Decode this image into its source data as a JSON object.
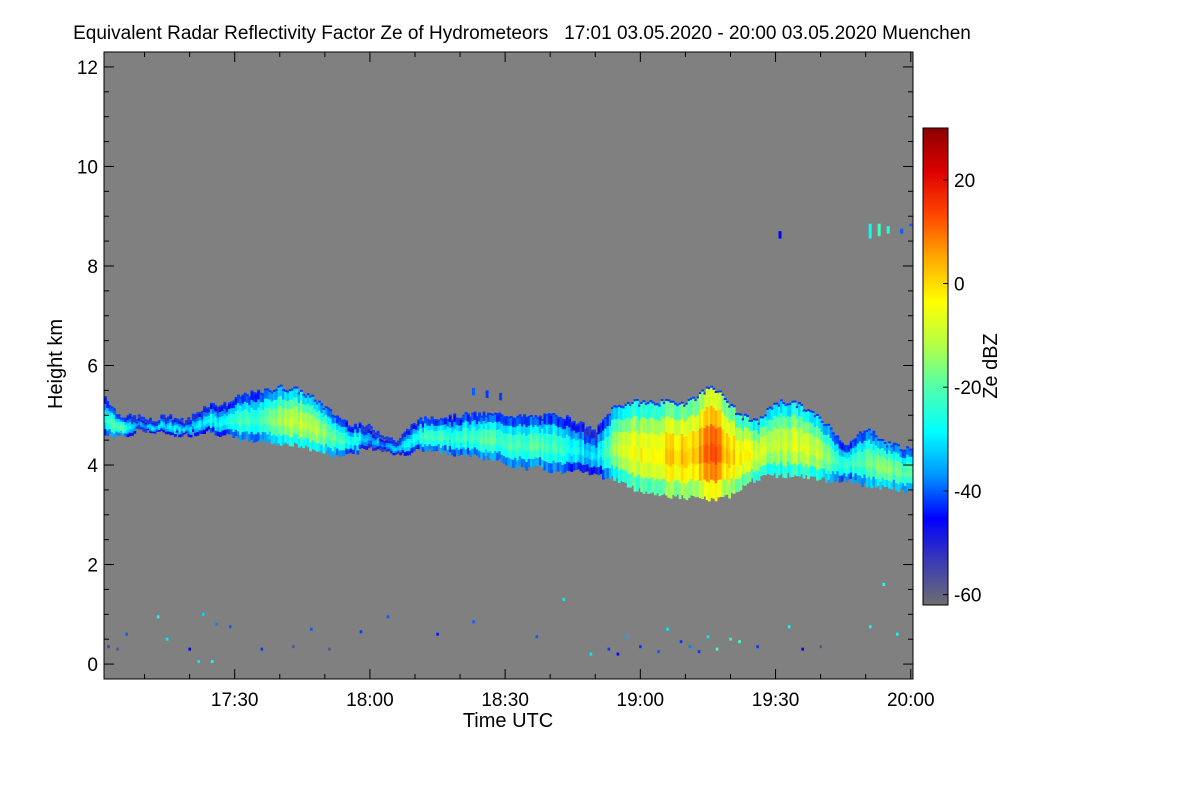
{
  "chart_data": {
    "type": "heatmap",
    "title": "Equivalent Radar Reflectivity Factor Ze of Hydrometeors   17:01 03.05.2020 - 20:00 03.05.2020 Muenchen",
    "xlabel": "Time UTC",
    "ylabel": "Height km",
    "x_unit": "minutes after 17:00 UTC",
    "xlim": [
      1,
      180.5
    ],
    "ylim": [
      -0.3,
      12.3
    ],
    "x_ticks": [
      {
        "value": 30,
        "label": "17:30"
      },
      {
        "value": 60,
        "label": "18:00"
      },
      {
        "value": 90,
        "label": "18:30"
      },
      {
        "value": 120,
        "label": "19:00"
      },
      {
        "value": 150,
        "label": "19:30"
      },
      {
        "value": 180,
        "label": "20:00"
      }
    ],
    "y_ticks": [
      {
        "value": 0,
        "label": "0"
      },
      {
        "value": 2,
        "label": "2"
      },
      {
        "value": 4,
        "label": "4"
      },
      {
        "value": 6,
        "label": "6"
      },
      {
        "value": 8,
        "label": "8"
      },
      {
        "value": 10,
        "label": "10"
      },
      {
        "value": 12,
        "label": "12"
      }
    ],
    "background_color": "#808080",
    "colorbar": {
      "label": "Ze dBZ",
      "range": [
        -62,
        30
      ],
      "ticks": [
        {
          "value": 20,
          "label": "20"
        },
        {
          "value": 0,
          "label": "0"
        },
        {
          "value": -20,
          "label": "-20"
        },
        {
          "value": -40,
          "label": "-40"
        },
        {
          "value": -60,
          "label": "-60"
        }
      ],
      "colors": [
        "#6e6e6e",
        "#3b3bb6",
        "#0000ff",
        "#0096ff",
        "#00ffff",
        "#50ffaf",
        "#b4ff46",
        "#ffff00",
        "#ffaa00",
        "#ff4600",
        "#dc0000",
        "#8c0000"
      ]
    },
    "cloud_layer": {
      "description": "main hydrometeor layer",
      "columns": [
        {
          "t": 1,
          "base": 4.6,
          "top": 5.4,
          "ze": -25
        },
        {
          "t": 4,
          "base": 4.6,
          "top": 5.0,
          "ze": -18
        },
        {
          "t": 7,
          "base": 4.6,
          "top": 4.95,
          "ze": -28
        },
        {
          "t": 9,
          "base": 4.75,
          "top": 4.95,
          "ze": -36
        },
        {
          "t": 12,
          "base": 4.65,
          "top": 4.85,
          "ze": -30
        },
        {
          "t": 15,
          "base": 4.65,
          "top": 5.0,
          "ze": -32
        },
        {
          "t": 19,
          "base": 4.6,
          "top": 4.85,
          "ze": -30
        },
        {
          "t": 24,
          "base": 4.7,
          "top": 5.2,
          "ze": -28
        },
        {
          "t": 28,
          "base": 4.6,
          "top": 5.2,
          "ze": -28
        },
        {
          "t": 32,
          "base": 4.5,
          "top": 5.4,
          "ze": -22
        },
        {
          "t": 36,
          "base": 4.5,
          "top": 5.45,
          "ze": -20
        },
        {
          "t": 40,
          "base": 4.45,
          "top": 5.55,
          "ze": -12
        },
        {
          "t": 44,
          "base": 4.4,
          "top": 5.5,
          "ze": -10
        },
        {
          "t": 48,
          "base": 4.3,
          "top": 5.3,
          "ze": -12
        },
        {
          "t": 52,
          "base": 4.2,
          "top": 5.0,
          "ze": -18
        },
        {
          "t": 56,
          "base": 4.25,
          "top": 4.8,
          "ze": -25
        },
        {
          "t": 60,
          "base": 4.35,
          "top": 4.75,
          "ze": -32
        },
        {
          "t": 64,
          "base": 4.3,
          "top": 4.55,
          "ze": -38
        },
        {
          "t": 66,
          "base": 4.2,
          "top": 4.45,
          "ze": -30
        },
        {
          "t": 70,
          "base": 4.3,
          "top": 4.85,
          "ze": -25
        },
        {
          "t": 74,
          "base": 4.3,
          "top": 4.95,
          "ze": -22
        },
        {
          "t": 78,
          "base": 4.25,
          "top": 4.95,
          "ze": -22
        },
        {
          "t": 82,
          "base": 4.2,
          "top": 5.0,
          "ze": -22
        },
        {
          "t": 86,
          "base": 4.15,
          "top": 5.0,
          "ze": -20
        },
        {
          "t": 90,
          "base": 4.05,
          "top": 5.0,
          "ze": -20
        },
        {
          "t": 94,
          "base": 3.95,
          "top": 4.95,
          "ze": -20
        },
        {
          "t": 98,
          "base": 3.95,
          "top": 4.95,
          "ze": -20
        },
        {
          "t": 102,
          "base": 3.85,
          "top": 5.0,
          "ze": -22
        },
        {
          "t": 106,
          "base": 3.95,
          "top": 4.85,
          "ze": -28
        },
        {
          "t": 110,
          "base": 3.8,
          "top": 4.65,
          "ze": -32
        },
        {
          "t": 114,
          "base": 3.75,
          "top": 5.15,
          "ze": -15
        },
        {
          "t": 118,
          "base": 3.55,
          "top": 5.25,
          "ze": -5
        },
        {
          "t": 122,
          "base": 3.45,
          "top": 5.25,
          "ze": -3
        },
        {
          "t": 126,
          "base": 3.4,
          "top": 5.25,
          "ze": 0
        },
        {
          "t": 130,
          "base": 3.35,
          "top": 5.25,
          "ze": 2
        },
        {
          "t": 133,
          "base": 3.35,
          "top": 5.4,
          "ze": 5
        },
        {
          "t": 136,
          "base": 3.3,
          "top": 5.6,
          "ze": 14
        },
        {
          "t": 139,
          "base": 3.35,
          "top": 5.3,
          "ze": 4
        },
        {
          "t": 142,
          "base": 3.55,
          "top": 5.0,
          "ze": -2
        },
        {
          "t": 146,
          "base": 3.75,
          "top": 4.85,
          "ze": -8
        },
        {
          "t": 150,
          "base": 3.8,
          "top": 5.25,
          "ze": -10
        },
        {
          "t": 154,
          "base": 3.8,
          "top": 5.25,
          "ze": -8
        },
        {
          "t": 158,
          "base": 3.75,
          "top": 5.05,
          "ze": -8
        },
        {
          "t": 162,
          "base": 3.7,
          "top": 4.75,
          "ze": -15
        },
        {
          "t": 166,
          "base": 3.7,
          "top": 4.35,
          "ze": -25
        },
        {
          "t": 170,
          "base": 3.6,
          "top": 4.75,
          "ze": -18
        },
        {
          "t": 174,
          "base": 3.55,
          "top": 4.45,
          "ze": -15
        },
        {
          "t": 178,
          "base": 3.5,
          "top": 4.35,
          "ze": -18
        },
        {
          "t": 180.5,
          "base": 3.5,
          "top": 4.25,
          "ze": -20
        }
      ]
    },
    "isolated_echoes": [
      {
        "t": 83,
        "base": 5.4,
        "top": 5.55,
        "ze": -40
      },
      {
        "t": 86,
        "base": 5.35,
        "top": 5.5,
        "ze": -42
      },
      {
        "t": 89,
        "base": 5.3,
        "top": 5.45,
        "ze": -42
      },
      {
        "t": 151,
        "base": 8.55,
        "top": 8.7,
        "ze": -45
      },
      {
        "t": 171,
        "base": 8.55,
        "top": 8.85,
        "ze": -28
      },
      {
        "t": 173,
        "base": 8.6,
        "top": 8.85,
        "ze": -22
      },
      {
        "t": 175,
        "base": 8.65,
        "top": 8.8,
        "ze": -25
      },
      {
        "t": 178,
        "base": 8.65,
        "top": 8.75,
        "ze": -40
      },
      {
        "t": 180,
        "base": 8.8,
        "top": 8.85,
        "ze": -40
      }
    ],
    "low_level_clutter": [
      {
        "t": 2,
        "h": 0.35,
        "ze": -55
      },
      {
        "t": 4,
        "h": 0.3,
        "ze": -58
      },
      {
        "t": 6,
        "h": 0.6,
        "ze": -40
      },
      {
        "t": 13,
        "h": 0.95,
        "ze": -28
      },
      {
        "t": 15,
        "h": 0.5,
        "ze": -30
      },
      {
        "t": 20,
        "h": 0.3,
        "ze": -45
      },
      {
        "t": 22,
        "h": 0.05,
        "ze": -30
      },
      {
        "t": 25,
        "h": 0.05,
        "ze": -28
      },
      {
        "t": 23,
        "h": 1.0,
        "ze": -32
      },
      {
        "t": 26,
        "h": 0.8,
        "ze": -38
      },
      {
        "t": 29,
        "h": 0.75,
        "ze": -40
      },
      {
        "t": 36,
        "h": 0.3,
        "ze": -42
      },
      {
        "t": 43,
        "h": 0.35,
        "ze": -58
      },
      {
        "t": 47,
        "h": 0.7,
        "ze": -40
      },
      {
        "t": 51,
        "h": 0.3,
        "ze": -58
      },
      {
        "t": 58,
        "h": 0.65,
        "ze": -42
      },
      {
        "t": 64,
        "h": 0.95,
        "ze": -40
      },
      {
        "t": 75,
        "h": 0.6,
        "ze": -44
      },
      {
        "t": 83,
        "h": 0.85,
        "ze": -40
      },
      {
        "t": 97,
        "h": 0.55,
        "ze": -40
      },
      {
        "t": 103,
        "h": 1.3,
        "ze": -30
      },
      {
        "t": 109,
        "h": 0.2,
        "ze": -30
      },
      {
        "t": 113,
        "h": 0.3,
        "ze": -42
      },
      {
        "t": 115,
        "h": 0.2,
        "ze": -45
      },
      {
        "t": 117,
        "h": 0.55,
        "ze": -35
      },
      {
        "t": 120,
        "h": 0.35,
        "ze": -42
      },
      {
        "t": 124,
        "h": 0.25,
        "ze": -40
      },
      {
        "t": 126,
        "h": 0.7,
        "ze": -30
      },
      {
        "t": 129,
        "h": 0.45,
        "ze": -42
      },
      {
        "t": 131,
        "h": 0.35,
        "ze": -38
      },
      {
        "t": 133,
        "h": 0.25,
        "ze": -42
      },
      {
        "t": 135,
        "h": 0.55,
        "ze": -30
      },
      {
        "t": 137,
        "h": 0.3,
        "ze": -20
      },
      {
        "t": 140,
        "h": 0.5,
        "ze": -25
      },
      {
        "t": 142,
        "h": 0.45,
        "ze": -22
      },
      {
        "t": 146,
        "h": 0.35,
        "ze": -42
      },
      {
        "t": 153,
        "h": 0.75,
        "ze": -28
      },
      {
        "t": 156,
        "h": 0.3,
        "ze": -45
      },
      {
        "t": 160,
        "h": 0.35,
        "ze": -58
      },
      {
        "t": 171,
        "h": 0.75,
        "ze": -28
      },
      {
        "t": 174,
        "h": 1.6,
        "ze": -25
      },
      {
        "t": 177,
        "h": 0.6,
        "ze": -28
      }
    ]
  }
}
